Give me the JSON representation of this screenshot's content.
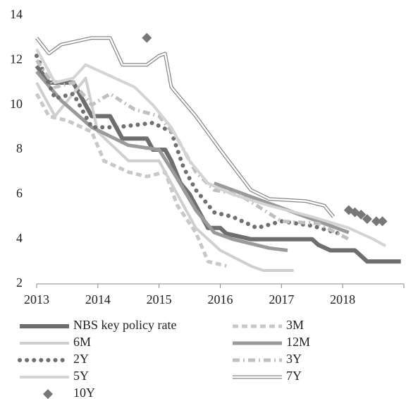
{
  "chart_data": {
    "type": "line",
    "xlim": [
      2013,
      2019
    ],
    "xticks": [
      2013,
      2014,
      2015,
      2016,
      2017,
      2018
    ],
    "ylim": [
      2,
      14
    ],
    "yticks": [
      2,
      4,
      6,
      8,
      10,
      12,
      14
    ],
    "series": [
      {
        "name": "NBS key policy rate",
        "color": "#6e6e6e",
        "style": "solid",
        "width": 6,
        "x": [
          2013,
          2013.2,
          2013.4,
          2013.6,
          2013.8,
          2013.9,
          2014.2,
          2014.3,
          2014.4,
          2014.8,
          2014.9,
          2015.1,
          2015.2,
          2015.35,
          2015.5,
          2015.6,
          2015.8,
          2016.0,
          2016.1,
          2016.5,
          2017.5,
          2017.6,
          2017.8,
          2018.2,
          2018.3,
          2018.4,
          2018.95
        ],
        "values": [
          11.75,
          11,
          11,
          11,
          10,
          9.5,
          9.5,
          9,
          8.5,
          8.5,
          8,
          8,
          7.5,
          6.5,
          6,
          5.5,
          4.5,
          4.5,
          4.25,
          4,
          4,
          3.75,
          3.5,
          3.5,
          3.25,
          3,
          3
        ]
      },
      {
        "name": "3M",
        "color": "#c8c8c8",
        "style": "dashed",
        "width": 5,
        "x": [
          2013,
          2013.2,
          2013.5,
          2013.9,
          2014.1,
          2014.5,
          2014.8,
          2015.1,
          2015.3,
          2015.6,
          2015.8,
          2016.1
        ],
        "values": [
          10.5,
          9.5,
          9.3,
          8.8,
          7.5,
          7,
          6.8,
          7,
          5.5,
          4.3,
          3,
          2.8
        ]
      },
      {
        "name": "6M",
        "color": "#cfcfcf",
        "style": "solid",
        "width": 4,
        "x": [
          2013,
          2013.3,
          2013.8,
          2014.0,
          2014.5,
          2015.0,
          2015.3,
          2015.6,
          2016.0,
          2016.5,
          2016.7,
          2017.2
        ],
        "values": [
          11,
          9.5,
          11.2,
          8.8,
          7.5,
          7.5,
          6,
          4.5,
          3.5,
          2.8,
          2.6,
          2.6
        ]
      },
      {
        "name": "12M",
        "color": "#9a9a9a",
        "style": "solid",
        "width": 5,
        "x": [
          2013,
          2013.4,
          2013.9,
          2014.5,
          2015.0,
          2015.3,
          2015.6,
          2015.9,
          2016.2,
          2016.5,
          2016.8,
          2017.1,
          2017.2,
          2015.9,
          2018.1
        ],
        "values": [
          11.5,
          10.2,
          9,
          8.2,
          8,
          6.7,
          5.3,
          4.3,
          4,
          3.8,
          3.6,
          3.5,
          null,
          6.5,
          4.3
        ]
      },
      {
        "name": "2Y",
        "color": "#707070",
        "style": "dotted",
        "width": 6,
        "x": [
          2013,
          2013.3,
          2013.6,
          2013.9,
          2014.3,
          2014.9,
          2015.2,
          2015.4,
          2015.6,
          2015.9,
          2016.2,
          2016.6,
          2017.0,
          2017.5,
          2018.0
        ],
        "values": [
          12.2,
          10.3,
          10.5,
          9,
          9,
          9.2,
          8.8,
          7.2,
          6.2,
          5.2,
          5,
          4.5,
          4.8,
          4.6,
          4.2
        ]
      },
      {
        "name": "3Y",
        "color": "#c0c0c0",
        "style": "dashdot",
        "width": 5,
        "x": [
          2013,
          2013.3,
          2013.6,
          2013.9,
          2014.2,
          2014.6,
          2015.0,
          2015.3,
          2015.6,
          2015.9,
          2016.3,
          2016.6,
          2017.0,
          2017.6,
          2018.1
        ],
        "values": [
          12,
          10.8,
          11,
          10,
          10.5,
          9.8,
          9.5,
          8.5,
          7,
          6.2,
          6,
          5.5,
          4.8,
          4.7,
          4
        ]
      },
      {
        "name": "5Y",
        "color": "#d4d4d4",
        "style": "solid",
        "width": 4,
        "x": [
          2013,
          2013.3,
          2013.6,
          2013.8,
          2014.2,
          2014.6,
          2014.9,
          2015.2,
          2015.5,
          2015.8,
          2016.2,
          2016.8,
          2017.5,
          2018.1,
          2018.5,
          2018.7
        ],
        "values": [
          12.5,
          11,
          11.2,
          11.8,
          11.3,
          10.8,
          10,
          9,
          7.5,
          6.5,
          6,
          5.5,
          5,
          4.5,
          4,
          3.7
        ]
      },
      {
        "name": "7Y",
        "color": "#888888",
        "style": "double",
        "width": 5,
        "x": [
          2013,
          2013.2,
          2013.4,
          2013.9,
          2014.2,
          2014.4,
          2014.8,
          2015.0,
          2015.1,
          2015.2,
          2015.6,
          2016.0,
          2016.5,
          2016.8,
          2017.4,
          2017.7,
          2017.85
        ],
        "values": [
          13,
          12.3,
          12.7,
          13,
          13,
          11.8,
          11.8,
          12.2,
          12.3,
          10.8,
          9.5,
          8,
          6.2,
          5.8,
          5.7,
          5.5,
          5
        ]
      },
      {
        "name": "10Y",
        "color": "#777777",
        "style": "markers",
        "width": 5,
        "x": [
          2014.8,
          2018.1,
          2018.2,
          2018.3,
          2018.4,
          2018.55,
          2018.65
        ],
        "values": [
          13,
          5.3,
          5.2,
          5.1,
          4.9,
          4.8,
          4.8
        ]
      }
    ]
  }
}
